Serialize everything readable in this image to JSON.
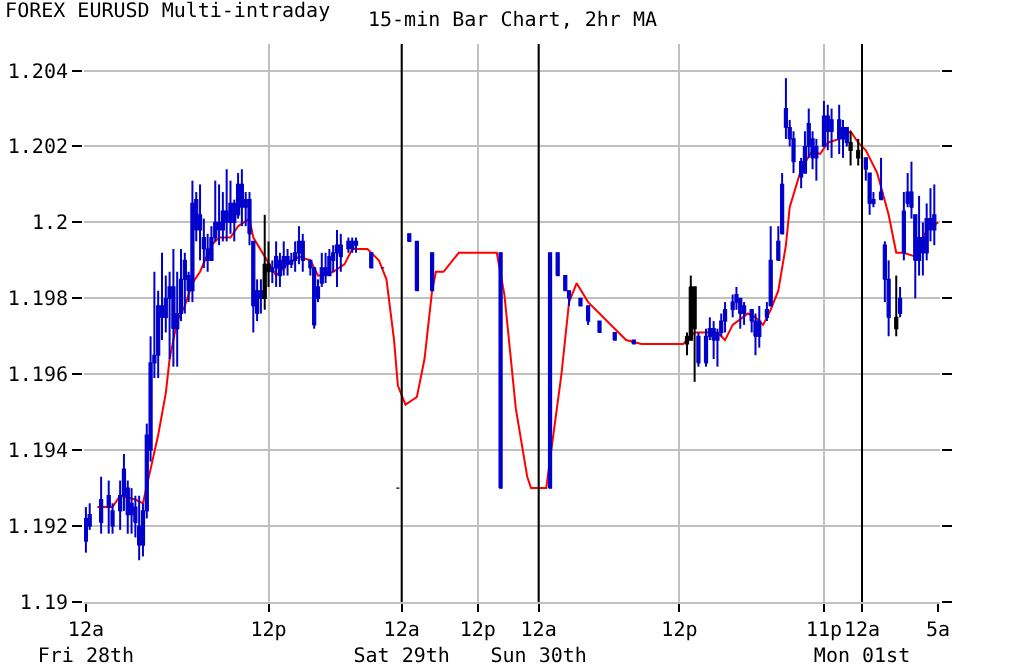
{
  "chart_data": {
    "type": "candlestick",
    "title": "FOREX EURUSD Multi-intraday",
    "subtitle": "15-min Bar Chart, 2hr MA",
    "categories": [
      "12a\nFri 28th",
      null,
      null,
      null,
      null,
      null,
      null,
      null,
      null,
      null,
      null,
      null,
      null,
      null,
      null,
      null,
      null,
      null,
      null,
      null,
      null,
      null,
      null,
      null,
      null,
      null,
      null,
      null,
      null,
      null,
      null,
      null,
      null,
      null,
      null,
      null,
      null,
      null,
      null,
      null,
      null,
      null,
      null,
      null,
      null,
      null,
      null,
      null,
      "12p",
      null,
      null,
      null,
      null,
      null,
      null,
      null,
      null,
      null,
      null,
      null,
      null,
      null,
      null,
      null,
      null,
      null,
      null,
      null,
      null,
      null,
      null,
      null,
      null,
      null,
      null,
      null,
      null,
      null,
      null,
      null,
      null,
      null,
      null,
      "12a\nSat 29th",
      null,
      null,
      null,
      null,
      null,
      null,
      null,
      null,
      null,
      null,
      null,
      null,
      null,
      null,
      null,
      null,
      null,
      null,
      null,
      "12p",
      null,
      null,
      null,
      null,
      null,
      null,
      null,
      null,
      null,
      null,
      null,
      null,
      null,
      null,
      null,
      "12a\nSun 30th",
      null,
      null,
      null,
      null,
      null,
      null,
      null,
      null,
      null,
      null,
      null,
      null,
      null,
      null,
      null,
      null,
      null,
      null,
      null,
      null,
      null,
      null,
      null,
      null,
      null,
      null,
      null,
      null,
      null,
      null,
      null,
      null,
      null,
      null,
      null,
      null,
      "12p",
      null,
      null,
      null,
      null,
      null,
      null,
      null,
      null,
      null,
      null,
      null,
      null,
      null,
      null,
      null,
      null,
      null,
      null,
      null,
      null,
      null,
      null,
      null,
      null,
      null,
      null,
      null,
      null,
      null,
      null,
      null,
      null,
      null,
      null,
      null,
      null,
      null,
      "11p",
      null,
      null,
      null,
      null,
      null,
      null,
      null,
      null,
      null,
      "12a\nMon 01st",
      null,
      null,
      null,
      null,
      null,
      null,
      null,
      null,
      null,
      null,
      null,
      null,
      null,
      null,
      null,
      null,
      null,
      null,
      null,
      "5a"
    ],
    "ohlc": [
      [
        1.1916,
        1.1925,
        1.1913,
        1.1922
      ],
      [
        1.192,
        1.1926,
        1.1919,
        1.1923
      ],
      null,
      null,
      [
        1.1921,
        1.1933,
        1.1918,
        1.1927
      ],
      null,
      [
        1.1925,
        1.1932,
        1.1918,
        1.1928
      ],
      [
        1.192,
        1.1926,
        1.1918,
        1.1924
      ],
      null,
      [
        1.1924,
        1.1932,
        1.1919,
        1.1928
      ],
      [
        1.1928,
        1.1939,
        1.1924,
        1.1935
      ],
      [
        1.1923,
        1.1932,
        1.1918,
        1.193
      ],
      [
        1.1923,
        1.193,
        1.1918,
        1.1926
      ],
      [
        1.1921,
        1.1928,
        1.1917,
        1.1925
      ],
      [
        1.1915,
        1.1928,
        1.1911,
        1.192
      ],
      [
        1.1915,
        1.1926,
        1.1912,
        1.1924
      ],
      [
        1.1924,
        1.1947,
        1.1922,
        1.1944
      ],
      [
        1.194,
        1.197,
        1.1937,
        1.1963
      ],
      [
        1.1963,
        1.1987,
        1.1959,
        1.1965
      ],
      [
        1.1965,
        1.1982,
        1.1959,
        1.1978
      ],
      [
        1.1975,
        1.1992,
        1.1969,
        1.1978
      ],
      [
        1.1975,
        1.1986,
        1.1971,
        1.198
      ],
      [
        1.198,
        1.1987,
        1.1964,
        1.1983
      ],
      [
        1.1972,
        1.1993,
        1.1962,
        1.1983
      ],
      [
        1.1972,
        1.1987,
        1.1962,
        1.1976
      ],
      [
        1.1976,
        1.1993,
        1.1974,
        1.1985
      ],
      [
        1.1985,
        1.1992,
        1.1976,
        1.199
      ],
      [
        1.1982,
        1.1987,
        1.1979,
        1.1986
      ],
      [
        1.1982,
        1.2011,
        1.1979,
        1.2005
      ],
      [
        1.1998,
        1.2008,
        1.1995,
        1.2006
      ],
      [
        1.1998,
        1.201,
        1.199,
        1.2002
      ],
      [
        1.1993,
        1.2001,
        1.1988,
        1.1996
      ],
      [
        1.199,
        1.1997,
        1.1987,
        1.1993
      ],
      [
        1.199,
        1.1999,
        1.199,
        1.1996
      ],
      [
        1.1996,
        1.2011,
        1.1995,
        1.2
      ],
      [
        1.1998,
        1.201,
        1.1994,
        1.2
      ],
      [
        1.1998,
        1.2008,
        1.1995,
        1.2003
      ],
      [
        1.2,
        1.2014,
        1.1995,
        1.2003
      ],
      [
        1.2,
        1.2011,
        1.1997,
        1.2005
      ],
      [
        1.2,
        1.2006,
        1.1995,
        1.2005
      ],
      [
        1.2002,
        1.2013,
        1.2001,
        1.201
      ],
      [
        1.2004,
        1.2014,
        1.1999,
        1.201
      ],
      [
        1.2004,
        1.2008,
        1.1999,
        1.2006
      ],
      [
        1.1997,
        1.2008,
        1.1994,
        1.2006
      ],
      [
        1.1978,
        1.1995,
        1.1971,
        1.1995
      ],
      [
        1.1976,
        1.1985,
        1.1974,
        1.1982
      ],
      [
        1.198,
        1.1985,
        1.1976,
        1.1982
      ],
      [
        1.1989,
        1.2002,
        1.1977,
        1.198
      ],
      [
        1.1989,
        1.1995,
        1.1983,
        1.1987
      ],
      [
        1.1987,
        1.199,
        1.1984,
        1.1988
      ],
      [
        1.1988,
        1.1995,
        1.1983,
        1.1991
      ],
      [
        1.1986,
        1.1992,
        1.1983,
        1.199
      ],
      [
        1.1988,
        1.1995,
        1.1986,
        1.1991
      ],
      [
        1.1989,
        1.1993,
        1.1986,
        1.1991
      ],
      [
        1.1989,
        1.1992,
        1.1988,
        1.199
      ],
      [
        1.199,
        1.1995,
        1.1987,
        1.1992
      ],
      [
        1.1992,
        1.1999,
        1.1989,
        1.1995
      ],
      [
        1.199,
        1.1997,
        1.1987,
        1.1995
      ],
      null,
      [
        1.1988,
        1.199,
        1.1986,
        1.199
      ],
      [
        1.1973,
        1.1988,
        1.1972,
        1.1988
      ],
      [
        1.198,
        1.1985,
        1.1979,
        1.1983
      ],
      [
        1.1984,
        1.1992,
        1.1983,
        1.1988
      ],
      [
        1.1986,
        1.1992,
        1.1984,
        1.1988
      ],
      [
        1.1986,
        1.1993,
        1.1986,
        1.1991
      ],
      [
        1.199,
        1.1994,
        1.1987,
        1.1992
      ],
      [
        1.1992,
        1.1998,
        1.1983,
        1.1994
      ],
      [
        1.1991,
        1.1997,
        1.1987,
        1.1994
      ],
      null,
      [
        1.1993,
        1.1996,
        1.1992,
        1.1995
      ],
      [
        1.1993,
        1.1996,
        1.1992,
        1.1995
      ],
      [
        1.1994,
        1.1996,
        1.1992,
        1.1995
      ],
      null,
      null,
      null,
      [
        1.1988,
        1.1992,
        1.1988,
        1.1992
      ],
      null,
      null,
      [
        1.1988,
        1.1988,
        1.1988,
        1.1988
      ],
      null,
      null,
      null,
      [
        1.193,
        1.193,
        1.193,
        1.193
      ],
      null,
      null,
      [
        1.1995,
        1.1997,
        1.1995,
        1.1997
      ],
      null,
      [
        1.1982,
        1.1995,
        1.1982,
        1.1995
      ],
      null,
      null,
      null,
      [
        1.1982,
        1.1992,
        1.1982,
        1.1992
      ],
      null,
      null,
      null,
      null,
      null,
      null,
      null,
      null,
      null,
      null,
      null,
      null,
      null,
      null,
      null,
      null,
      null,
      [
        1.193,
        1.1992,
        1.193,
        1.1992
      ],
      null,
      null,
      null,
      null,
      null,
      null,
      null,
      null,
      null,
      null,
      null,
      null,
      [
        1.193,
        1.1992,
        1.193,
        1.1992
      ],
      null,
      [
        1.1986,
        1.1992,
        1.1986,
        1.1992
      ],
      null,
      [
        1.1982,
        1.1986,
        1.1982,
        1.1986
      ],
      [
        1.198,
        1.1982,
        1.1978,
        1.1982
      ],
      null,
      null,
      [
        1.1978,
        1.198,
        1.1978,
        1.198
      ],
      null,
      [
        1.1974,
        1.1978,
        1.1973,
        1.1978
      ],
      null,
      null,
      [
        1.1971,
        1.1974,
        1.1971,
        1.1974
      ],
      null,
      null,
      null,
      [
        1.1969,
        1.1971,
        1.1969,
        1.1971
      ],
      null,
      null,
      null,
      null,
      [
        1.1968,
        1.1969,
        1.1968,
        1.1969
      ],
      null,
      null,
      null,
      null,
      null,
      null,
      null,
      null,
      null,
      null,
      null,
      null,
      null,
      [
        1.197,
        1.1971,
        1.1965,
        1.1968
      ],
      [
        1.1983,
        1.1986,
        1.1969,
        1.1969
      ],
      [
        1.1983,
        1.1983,
        1.1958,
        1.1972
      ],
      [
        1.1963,
        1.1971,
        1.1962,
        1.197
      ],
      null,
      [
        1.1963,
        1.1972,
        1.1962,
        1.197
      ],
      [
        1.197,
        1.1975,
        1.1969,
        1.1972
      ],
      [
        1.1969,
        1.1974,
        1.1964,
        1.1972
      ],
      [
        1.1969,
        1.1972,
        1.1962,
        1.1971
      ],
      [
        1.1971,
        1.1976,
        1.197,
        1.1974
      ],
      [
        1.1974,
        1.1979,
        1.1971,
        1.1977
      ],
      null,
      [
        1.1977,
        1.1981,
        1.1975,
        1.1979
      ],
      [
        1.1979,
        1.1983,
        1.1977,
        1.1981
      ],
      [
        1.1976,
        1.198,
        1.1972,
        1.198
      ],
      [
        1.1976,
        1.1979,
        1.1973,
        1.1978
      ],
      null,
      [
        1.1974,
        1.1977,
        1.1971,
        1.1977
      ],
      [
        1.197,
        1.1976,
        1.1965,
        1.1974
      ],
      [
        1.197,
        1.1978,
        1.1967,
        1.1974
      ],
      null,
      [
        1.1975,
        1.1979,
        1.1974,
        1.1977
      ],
      [
        1.1978,
        1.1999,
        1.1978,
        1.199
      ],
      null,
      [
        1.199,
        1.1999,
        1.199,
        1.1995
      ],
      [
        1.1997,
        1.2013,
        1.1997,
        1.201
      ],
      [
        1.2025,
        1.2038,
        1.2022,
        1.203
      ],
      [
        1.2022,
        1.2027,
        1.202,
        1.2025
      ],
      [
        1.2016,
        1.2024,
        1.2013,
        1.2022
      ],
      null,
      [
        1.2012,
        1.2017,
        1.2009,
        1.2016
      ],
      [
        1.2013,
        1.2024,
        1.2013,
        1.202
      ],
      [
        1.202,
        1.203,
        1.2017,
        1.2026
      ],
      [
        1.2017,
        1.2024,
        1.2014,
        1.2022
      ],
      [
        1.2017,
        1.2022,
        1.2011,
        1.202
      ],
      null,
      [
        1.202,
        1.2032,
        1.202,
        1.2028
      ],
      [
        1.2024,
        1.2031,
        1.2019,
        1.2028
      ],
      [
        1.2024,
        1.203,
        1.2017,
        1.2027
      ],
      null,
      [
        1.2022,
        1.2031,
        1.2018,
        1.2027
      ],
      [
        1.2022,
        1.2027,
        1.2017,
        1.2025
      ],
      [
        1.2021,
        1.2025,
        1.202,
        1.2025
      ],
      [
        1.2021,
        1.2024,
        1.2015,
        1.2019
      ],
      null,
      [
        1.2019,
        1.2022,
        1.2015,
        1.2017
      ],
      null,
      [
        1.2014,
        1.2017,
        1.2011,
        1.2017
      ],
      [
        1.2005,
        1.2013,
        1.2002,
        1.2013
      ],
      [
        1.2005,
        1.2008,
        1.2004,
        1.2006
      ],
      null,
      [
        1.2006,
        1.2017,
        1.2006,
        1.2008
      ],
      [
        1.1985,
        1.1995,
        1.1979,
        1.1994
      ],
      [
        1.1975,
        1.199,
        1.197,
        1.1985
      ],
      null,
      [
        1.1975,
        1.1986,
        1.197,
        1.1972
      ],
      [
        1.1976,
        1.1983,
        1.1975,
        1.198
      ],
      [
        1.1992,
        1.2008,
        1.199,
        1.2003
      ],
      [
        1.2005,
        1.2013,
        1.2004,
        1.2008
      ],
      [
        1.2004,
        1.2016,
        1.2001,
        1.2008
      ],
      [
        1.199,
        1.2002,
        1.198,
        1.2002
      ],
      [
        1.199,
        1.2007,
        1.1986,
        1.1996
      ],
      [
        1.1992,
        1.2,
        1.1986,
        1.1996
      ],
      [
        1.1992,
        1.2005,
        1.199,
        1.2001
      ],
      [
        1.1998,
        1.2009,
        1.1995,
        1.2001
      ],
      [
        1.1998,
        1.201,
        1.1994,
        1.2002
      ],
      null
    ],
    "colors": [
      "#0000cc",
      "#0000cc",
      null,
      null,
      "#0000cc",
      null,
      "#0000cc",
      "#0000cc",
      null,
      "#0000cc",
      "#0000cc",
      "#0000cc",
      "#0000cc",
      "#0000cc",
      "#0000cc",
      "#0000cc",
      "#0000cc",
      "#0000cc",
      "#0000cc",
      "#0000cc",
      "#0000cc",
      "#0000cc",
      "#0000cc",
      "#0000cc",
      "#0000cc",
      "#0000cc",
      "#0000cc",
      "#0000cc",
      "#0000cc",
      "#0000cc",
      "#0000cc",
      "#0000cc",
      "#0000cc",
      "#0000cc",
      "#0000cc",
      "#0000cc",
      "#0000cc",
      "#0000cc",
      "#0000cc",
      "#0000cc",
      "#0000cc",
      "#0000cc",
      "#0000cc",
      "#0000cc",
      "#0000cc",
      "#0000cc",
      "#0000cc",
      "#000000",
      "#000000",
      "#0000cc",
      "#0000cc",
      "#0000cc",
      "#0000cc",
      "#0000cc",
      "#0000cc",
      "#0000cc",
      "#0000cc",
      "#0000cc",
      null,
      "#0000cc",
      "#0000cc",
      "#0000cc",
      "#0000cc",
      "#0000cc",
      "#0000cc",
      "#0000cc",
      "#0000cc",
      "#0000cc",
      null,
      "#0000cc",
      "#0000cc",
      "#0000cc",
      null,
      null,
      null,
      "#0000cc",
      null,
      null,
      "#0000cc",
      null,
      null,
      null,
      "#000000",
      null,
      null,
      "#0000cc",
      null,
      "#0000cc",
      null,
      null,
      null,
      "#0000cc",
      null,
      null,
      null,
      null,
      null,
      null,
      null,
      null,
      null,
      null,
      null,
      null,
      null,
      null,
      null,
      null,
      null,
      "#0000cc",
      null,
      null,
      null,
      null,
      null,
      null,
      null,
      null,
      null,
      null,
      null,
      null,
      "#0000cc",
      null,
      "#0000cc",
      null,
      "#0000cc",
      "#0000cc",
      null,
      null,
      "#0000cc",
      null,
      "#0000cc",
      null,
      null,
      "#0000cc",
      null,
      null,
      null,
      "#0000cc",
      null,
      null,
      null,
      null,
      "#0000cc",
      null,
      null,
      null,
      null,
      null,
      null,
      null,
      null,
      null,
      null,
      null,
      null,
      null,
      "#000000",
      "#000000",
      "#000000",
      "#0000cc",
      null,
      "#0000cc",
      "#0000cc",
      "#0000cc",
      "#0000cc",
      "#0000cc",
      "#0000cc",
      null,
      "#0000cc",
      "#0000cc",
      "#0000cc",
      "#0000cc",
      null,
      "#0000cc",
      "#0000cc",
      "#0000cc",
      null,
      "#0000cc",
      "#0000cc",
      null,
      "#0000cc",
      "#0000cc",
      "#0000cc",
      "#0000cc",
      "#0000cc",
      null,
      "#0000cc",
      "#0000cc",
      "#0000cc",
      "#0000cc",
      "#0000cc",
      null,
      "#0000cc",
      "#0000cc",
      "#0000cc",
      null,
      "#0000cc",
      "#0000cc",
      "#0000cc",
      "#000000",
      null,
      "#000000",
      null,
      "#0000cc",
      "#0000cc",
      "#0000cc",
      null,
      "#0000cc",
      "#0000cc",
      "#0000cc",
      null,
      "#000000",
      "#0000cc",
      "#0000cc",
      "#0000cc",
      "#0000cc",
      "#0000cc",
      "#0000cc",
      "#0000cc",
      "#0000cc",
      "#0000cc",
      "#0000cc",
      null
    ],
    "series": [
      {
        "type": "line",
        "color": "#ff0000",
        "values": [
          null,
          null,
          null,
          1.1925,
          null,
          null,
          null,
          1.1925,
          null,
          1.1928,
          null,
          null,
          null,
          1.1927,
          null,
          1.1926,
          null,
          1.1935,
          null,
          1.1944,
          null,
          1.1955,
          1.1964,
          null,
          1.1974,
          null,
          1.1978,
          null,
          1.1984,
          null,
          1.1987,
          null,
          null,
          1.1994,
          null,
          1.1996,
          null,
          null,
          1.1996,
          null,
          1.1999,
          null,
          null,
          1.2001,
          1.1996,
          null,
          null,
          1.1991,
          null,
          null,
          1.1986,
          null,
          null,
          1.1989,
          null,
          null,
          1.1991,
          null,
          null,
          1.199,
          null,
          1.1986,
          1.1986,
          null,
          null,
          1.1987,
          null,
          null,
          1.1989,
          null,
          1.1993,
          null,
          null,
          null,
          1.1993,
          null,
          null,
          1.199,
          null,
          1.1985,
          null,
          1.1969,
          1.1957,
          null,
          1.1952,
          null,
          null,
          1.1954,
          null,
          1.1964,
          null,
          1.1982,
          1.1987,
          null,
          1.1987,
          null,
          null,
          null,
          1.1992,
          null,
          null,
          null,
          null,
          null,
          null,
          null,
          null,
          null,
          1.1992,
          null,
          1.1981,
          null,
          null,
          1.1951,
          null,
          null,
          1.1933,
          1.193,
          null,
          null,
          null,
          1.193,
          null,
          null,
          null,
          1.196,
          null,
          1.1979,
          null,
          1.1984,
          null,
          null,
          1.1979,
          null,
          null,
          1.1976,
          null,
          null,
          null,
          1.1972,
          null,
          null,
          1.1969,
          null,
          null,
          null,
          1.1968,
          null,
          null,
          null,
          null,
          null,
          null,
          null,
          null,
          null,
          null,
          1.1968,
          null,
          null,
          1.1971,
          null,
          1.1971,
          null,
          null,
          null,
          1.1971,
          null,
          1.1969,
          null,
          1.1973,
          null,
          null,
          null,
          1.1976,
          null,
          1.1975,
          null,
          1.1973,
          null,
          1.1977,
          null,
          1.1982,
          null,
          1.1994,
          1.2004,
          null,
          null,
          1.2014,
          null,
          null,
          1.2019,
          null,
          1.2018,
          null,
          1.2021,
          null,
          null,
          1.2022,
          null,
          null,
          1.2024,
          null,
          1.2021,
          null,
          1.2019,
          null,
          null,
          1.2013,
          null,
          null,
          1.2002,
          null,
          1.1992,
          null,
          1.1992,
          null,
          null,
          1.1991,
          null,
          null,
          1.1998,
          null,
          null,
          1.2
        ]
      }
    ],
    "ylim": [
      1.19,
      1.2047
    ],
    "yticks": [
      1.19,
      1.192,
      1.194,
      1.196,
      1.198,
      1.2,
      1.202,
      1.204
    ],
    "grid": true
  }
}
